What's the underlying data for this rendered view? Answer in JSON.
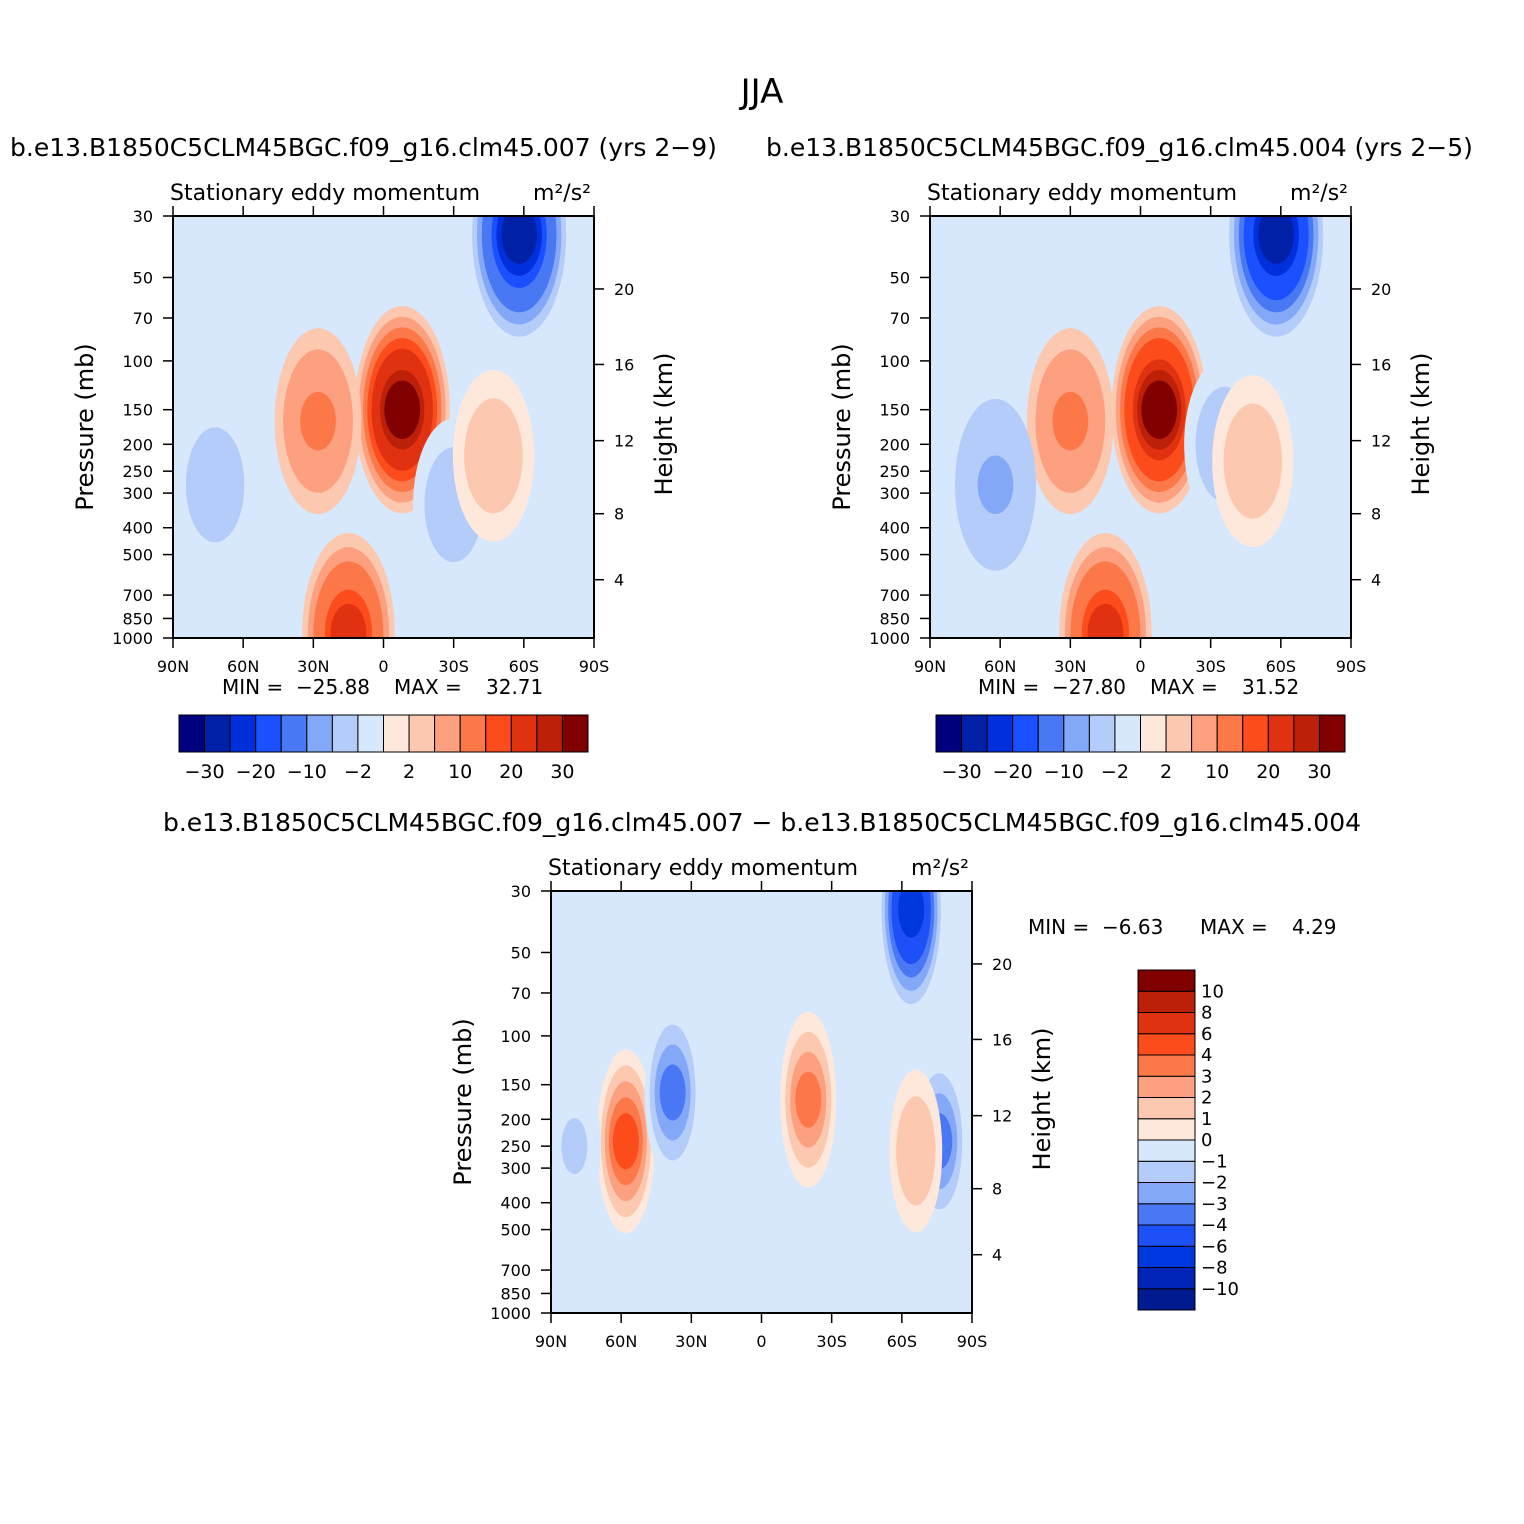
{
  "title": "JJA",
  "colors": {
    "main_palette": [
      "#00007f",
      "#0020a8",
      "#0030dc",
      "#1a50ff",
      "#4878f4",
      "#84a8f8",
      "#b4ccfa",
      "#d8e8fc",
      "#fee8dc",
      "#fcc8b0",
      "#fca080",
      "#fc7848",
      "#fc4c1c",
      "#e03210",
      "#bc2008",
      "#800000"
    ],
    "diff_palette": [
      "#001a90",
      "#0024b8",
      "#0038e0",
      "#1e50f8",
      "#4a78f4",
      "#84a8f8",
      "#b4ccfa",
      "#d8e8fc",
      "#fee8dc",
      "#fcc8b0",
      "#fca080",
      "#fc7848",
      "#fc4c1c",
      "#e03210",
      "#bc2008",
      "#800000"
    ]
  },
  "chart_data": [
    {
      "type": "heatmap",
      "title": "b.e13.B1850C5CLM45BGC.f09_g16.clm45.007 (yrs 2−9)",
      "subtitle_left": "Stationary eddy momentum",
      "subtitle_right": "m²/s²",
      "xlabel": "",
      "ylabel": "Pressure (mb)",
      "ylabel_right": "Height (km)",
      "x_ticks": [
        "90N",
        "60N",
        "30N",
        "0",
        "30S",
        "60S",
        "90S"
      ],
      "y_ticks": [
        "30",
        "50",
        "70",
        "100",
        "150",
        "200",
        "250",
        "300",
        "400",
        "500",
        "700",
        "850",
        "1000"
      ],
      "y_right_ticks": [
        "20",
        "16",
        "12",
        "8",
        "4"
      ],
      "min_label": "MIN =",
      "min_value": "−25.88",
      "max_label": "MAX =",
      "max_value": "32.71",
      "colorbar_labels": [
        "−30",
        "−20",
        "−10",
        "−2",
        "2",
        "10",
        "20",
        "30"
      ],
      "features": [
        {
          "lat": -58,
          "p": 35,
          "value": -25.88
        },
        {
          "lat": -8,
          "p": 150,
          "value": 32.71
        },
        {
          "lat": 28,
          "p": 165,
          "value": 12
        },
        {
          "lat": 15,
          "p": 960,
          "value": 22
        },
        {
          "lat": 72,
          "p": 280,
          "value": -4
        },
        {
          "lat": -30,
          "p": 330,
          "value": -4
        },
        {
          "lat": -47,
          "p": 220,
          "value": 4
        }
      ]
    },
    {
      "type": "heatmap",
      "title": "b.e13.B1850C5CLM45BGC.f09_g16.clm45.004 (yrs 2−5)",
      "subtitle_left": "Stationary eddy momentum",
      "subtitle_right": "m²/s²",
      "xlabel": "",
      "ylabel": "Pressure (mb)",
      "ylabel_right": "Height (km)",
      "x_ticks": [
        "90N",
        "60N",
        "30N",
        "0",
        "30S",
        "60S",
        "90S"
      ],
      "y_ticks": [
        "30",
        "50",
        "70",
        "100",
        "150",
        "200",
        "250",
        "300",
        "400",
        "500",
        "700",
        "850",
        "1000"
      ],
      "y_right_ticks": [
        "20",
        "16",
        "12",
        "8",
        "4"
      ],
      "min_label": "MIN =",
      "min_value": "−27.80",
      "max_label": "MAX =",
      "max_value": "31.52",
      "colorbar_labels": [
        "−30",
        "−20",
        "−10",
        "−2",
        "2",
        "10",
        "20",
        "30"
      ],
      "features": [
        {
          "lat": -58,
          "p": 35,
          "value": -27.8
        },
        {
          "lat": -8,
          "p": 150,
          "value": 31.52
        },
        {
          "lat": 30,
          "p": 165,
          "value": 12
        },
        {
          "lat": 15,
          "p": 960,
          "value": 22
        },
        {
          "lat": 62,
          "p": 280,
          "value": -6
        },
        {
          "lat": -36,
          "p": 200,
          "value": -4
        },
        {
          "lat": -48,
          "p": 230,
          "value": 4
        }
      ]
    },
    {
      "type": "heatmap",
      "title": "b.e13.B1850C5CLM45BGC.f09_g16.clm45.007 − b.e13.B1850C5CLM45BGC.f09_g16.clm45.004",
      "subtitle_left": "Stationary eddy momentum",
      "subtitle_right": "m²/s²",
      "xlabel": "",
      "ylabel": "Pressure (mb)",
      "ylabel_right": "Height (km)",
      "x_ticks": [
        "90N",
        "60N",
        "30N",
        "0",
        "30S",
        "60S",
        "90S"
      ],
      "y_ticks": [
        "30",
        "50",
        "70",
        "100",
        "150",
        "200",
        "250",
        "300",
        "400",
        "500",
        "700",
        "850",
        "1000"
      ],
      "y_right_ticks": [
        "20",
        "16",
        "12",
        "8",
        "4"
      ],
      "min_label": "MIN =",
      "min_value": "−6.63",
      "max_label": "MAX =",
      "max_value": "4.29",
      "colorbar_labels": [
        "10",
        "8",
        "6",
        "4",
        "3",
        "2",
        "1",
        "0",
        "−1",
        "−2",
        "−3",
        "−4",
        "−6",
        "−8",
        "−10"
      ],
      "features": [
        {
          "lat": -64,
          "p": 35,
          "value": -6.63
        },
        {
          "lat": 58,
          "p": 240,
          "value": 4.29
        },
        {
          "lat": 38,
          "p": 160,
          "value": -3
        },
        {
          "lat": -20,
          "p": 170,
          "value": 4
        },
        {
          "lat": -76,
          "p": 240,
          "value": -3
        },
        {
          "lat": -66,
          "p": 260,
          "value": 2
        },
        {
          "lat": 80,
          "p": 250,
          "value": -1
        }
      ]
    }
  ]
}
